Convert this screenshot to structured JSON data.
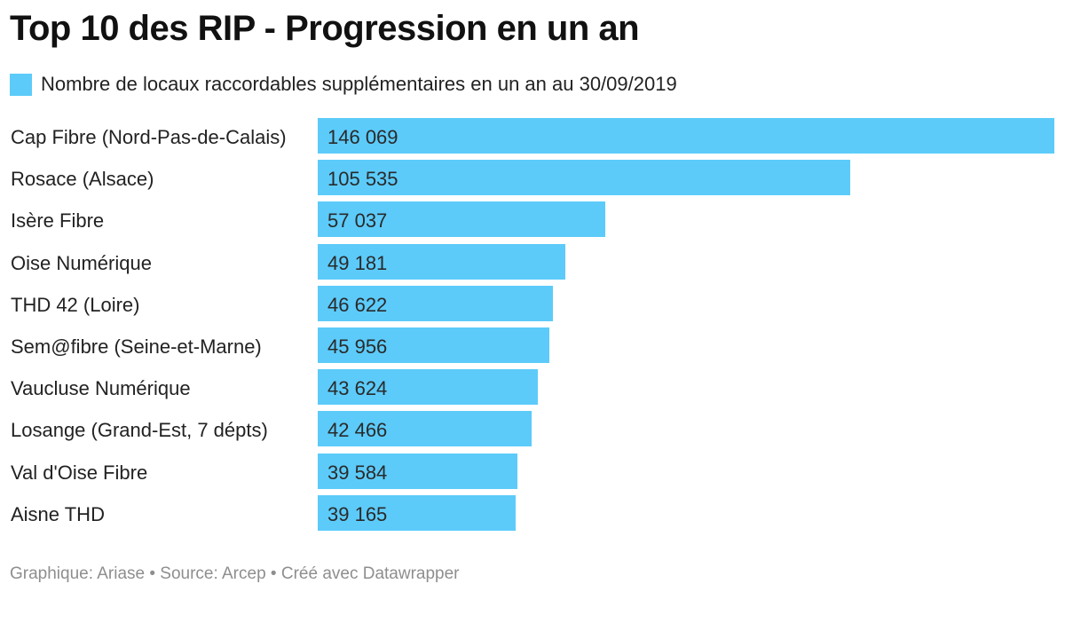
{
  "colors": {
    "bar": "#5ccbfa",
    "title": "#111111",
    "text": "#222222",
    "footer": "#8e8e8e"
  },
  "footer": {
    "text": "Graphique: Ariase • Source: Arcep • Créé avec Datawrapper"
  },
  "chart_data": {
    "type": "bar",
    "orientation": "horizontal",
    "title": "Top 10 des RIP - Progression en un an",
    "legend": [
      "Nombre de locaux raccordables supplémentaires en un an au 30/09/2019"
    ],
    "categories": [
      "Cap Fibre (Nord-Pas-de-Calais)",
      "Rosace (Alsace)",
      "Isère Fibre",
      "Oise Numérique",
      "THD 42 (Loire)",
      "Sem@fibre (Seine-et-Marne)",
      "Vaucluse Numérique",
      "Losange (Grand-Est, 7 dépts)",
      "Val d'Oise Fibre",
      "Aisne THD"
    ],
    "values": [
      146069,
      105535,
      57037,
      49181,
      46622,
      45956,
      43624,
      42466,
      39584,
      39165
    ],
    "value_labels": [
      "146 069",
      "105 535",
      "57 037",
      "49 181",
      "46 622",
      "45 956",
      "43 624",
      "42 466",
      "39 584",
      "39 165"
    ],
    "xlim": [
      0,
      146069
    ],
    "xlabel": "",
    "ylabel": "",
    "grid": false
  }
}
